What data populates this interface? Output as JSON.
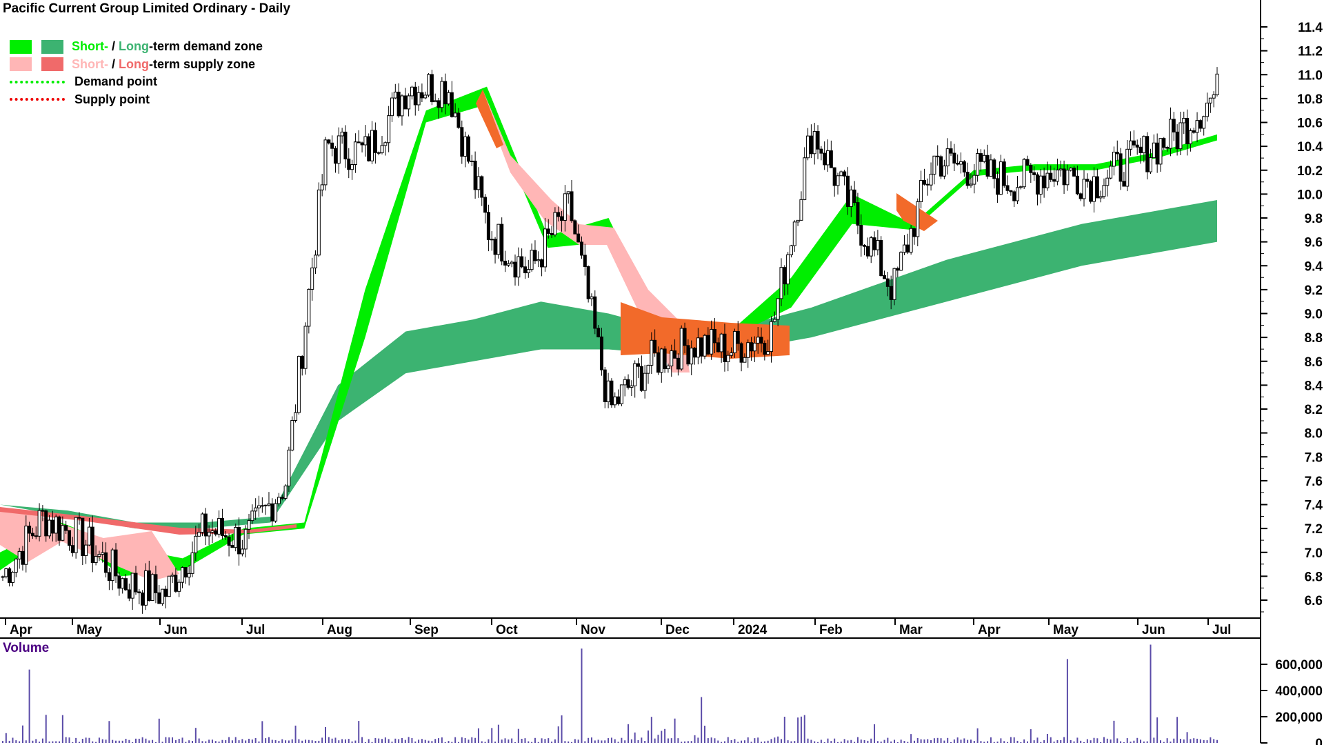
{
  "title": "Pacific Current Group Limited Ordinary - Daily",
  "legend": {
    "demand_zone": {
      "short": "Short-",
      "sep": " / ",
      "long": "Long",
      "rest": "-term demand zone"
    },
    "supply_zone": {
      "short": "Short-",
      "sep": " / ",
      "long": "Long",
      "rest": "-term supply zone"
    },
    "demand_point": "Demand point",
    "supply_point": "Supply point"
  },
  "colors": {
    "short_demand": "#00ee00",
    "long_demand": "#3cb371",
    "short_supply": "#ffb6b6",
    "long_supply": "#f06a6a",
    "mixed_zone": "#f26a2a",
    "volume_bar": "#5a4ba8",
    "grid": "#000000"
  },
  "volume_label": "Volume",
  "chart_data": {
    "type": "candlestick",
    "price_axis": {
      "ticks": [
        "11.4",
        "11.2",
        "11.0",
        "10.8",
        "10.6",
        "10.4",
        "10.2",
        "10.0",
        "9.8",
        "9.6",
        "9.4",
        "9.2",
        "9.0",
        "8.8",
        "8.6",
        "8.4",
        "8.2",
        "8.0",
        "7.8",
        "7.6",
        "7.4",
        "7.2",
        "7.0",
        "6.8",
        "6.6"
      ],
      "ylim": [
        6.45,
        11.6
      ]
    },
    "volume_axis": {
      "ticks": [
        "600,000",
        "400,000",
        "200,000",
        "0"
      ],
      "ylim": [
        0,
        800000
      ]
    },
    "x_axis": {
      "labels": [
        "Apr",
        "May",
        "Jun",
        "Jul",
        "Aug",
        "Sep",
        "Oct",
        "Nov",
        "Dec",
        "2024",
        "Feb",
        "Mar",
        "Apr",
        "May",
        "Jun",
        "Jul"
      ]
    },
    "close_anchors": [
      [
        "Apr",
        6.8
      ],
      [
        "Apr+",
        7.3
      ],
      [
        "May",
        7.1
      ],
      [
        "May+",
        6.75
      ],
      [
        "Jun",
        6.65
      ],
      [
        "Jun+",
        7.2
      ],
      [
        "Jul",
        7.1
      ],
      [
        "Jul+",
        7.6
      ],
      [
        "Aug",
        10.4
      ],
      [
        "Aug+",
        10.35
      ],
      [
        "Sep",
        10.9
      ],
      [
        "Sep+",
        10.9
      ],
      [
        "Oct",
        9.7
      ],
      [
        "Oct+",
        9.35
      ],
      [
        "Nov",
        9.9
      ],
      [
        "Nov+",
        8.2
      ],
      [
        "Dec",
        8.6
      ],
      [
        "Dec+",
        8.75
      ],
      [
        "2024",
        8.7
      ],
      [
        "2024+",
        8.85
      ],
      [
        "Feb",
        10.55
      ],
      [
        "Feb+",
        9.85
      ],
      [
        "Mar",
        9.2
      ],
      [
        "Mar+",
        10.3
      ],
      [
        "Apr",
        10.2
      ],
      [
        "Apr+",
        10.1
      ],
      [
        "May",
        10.2
      ],
      [
        "May+",
        10.1
      ],
      [
        "Jun",
        10.3
      ],
      [
        "Jun+",
        10.5
      ],
      [
        "Jul",
        10.85
      ]
    ],
    "short_term_zone": {
      "lower": [
        6.85,
        7.2,
        6.8,
        6.85,
        7.15,
        7.2,
        8.8,
        10.6,
        10.75,
        9.55,
        9.6,
        8.65,
        8.8,
        9.05,
        9.75,
        9.7,
        10.15,
        10.2,
        10.2,
        10.3,
        10.45
      ],
      "upper": [
        7.0,
        7.25,
        7.05,
        6.95,
        7.2,
        7.25,
        9.2,
        10.7,
        10.9,
        9.65,
        9.8,
        8.75,
        8.85,
        9.3,
        10.0,
        9.75,
        10.2,
        10.25,
        10.25,
        10.35,
        10.5
      ]
    },
    "long_term_zone": {
      "lower": [
        7.4,
        7.3,
        7.2,
        7.2,
        7.25,
        8.1,
        8.5,
        8.6,
        8.7,
        8.7,
        8.65,
        8.7,
        8.8,
        8.95,
        9.1,
        9.25,
        9.4,
        9.5,
        9.6
      ],
      "upper": [
        7.4,
        7.35,
        7.25,
        7.25,
        7.3,
        8.4,
        8.85,
        8.95,
        9.1,
        9.0,
        8.85,
        8.9,
        9.05,
        9.25,
        9.45,
        9.6,
        9.75,
        9.85,
        9.95
      ]
    },
    "volume_peaks": [
      560000,
      720000,
      640000,
      750000,
      350000,
      200000
    ]
  }
}
